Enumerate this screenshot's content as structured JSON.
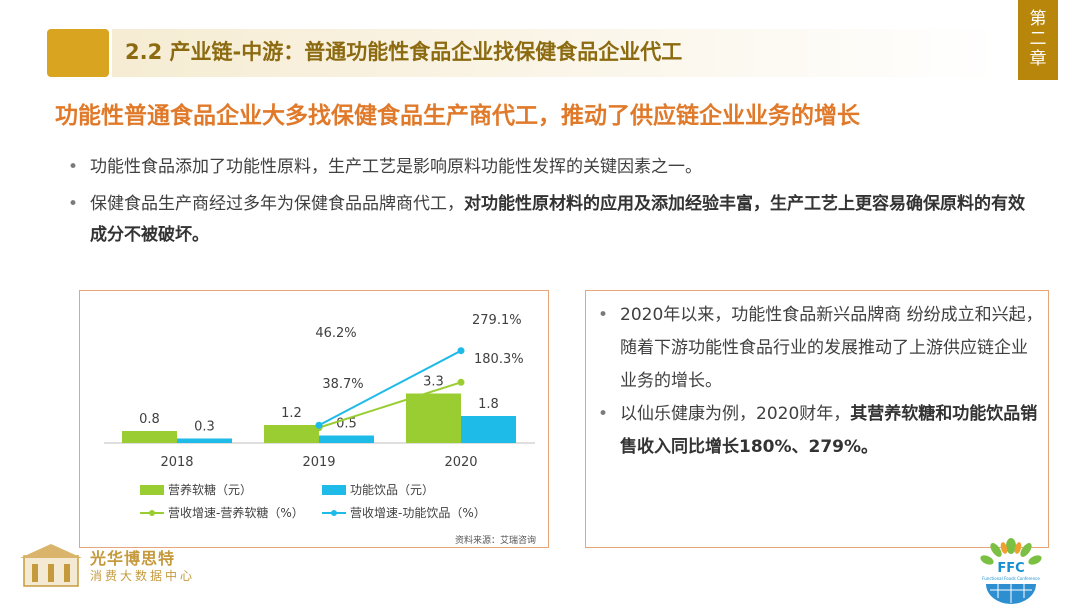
{
  "header": {
    "title": "2.2 产业链-中游：普通功能性食品企业找保健食品企业代工",
    "chapter": [
      "第",
      "二",
      "章"
    ]
  },
  "headline": "功能性普通食品企业大多找保健食品生产商代工，推动了供应链企业业务的增长",
  "bullets": {
    "b1": "功能性食品添加了功能性原料，生产工艺是影响原料功能性发挥的关键因素之一。",
    "b2_normal": "保健食品生产商经过多年为保健食品品牌商代工，",
    "b2_bold": "对功能性原材料的应用及添加经验丰富，生产工艺上更容易确保原料的有效成分不被破坏。"
  },
  "right_panel": {
    "p1": "2020年以来，功能性食品新兴品牌商 纷纷成立和兴起，随着下游功能性食品行业的发展推动了上游供应链企业业务的增长。",
    "p2_normal": "以仙乐健康为例，2020财年，",
    "p2_bold": "其营养软糖和功能饮品销售收入同比增长180%、279%。"
  },
  "source": "资料来源：艾瑞咨询",
  "logos": {
    "brand": "光华博思特",
    "sub": "消费大数据中心",
    "ffc": "FFC",
    "ffc_sub": "Functional Foods Conference"
  },
  "colors": {
    "gummy": "#9acd32",
    "drink": "#1ebbe8",
    "accent": "#e07a2a",
    "gold": "#b8860b"
  },
  "chart_data": {
    "type": "bar",
    "categories": [
      "2018",
      "2019",
      "2020"
    ],
    "series": [
      {
        "name": "营养软糖（元）",
        "values": [
          0.8,
          1.2,
          3.3
        ],
        "labels": [
          "0.8",
          "1.2",
          "3.3"
        ]
      },
      {
        "name": "功能饮品（元）",
        "values": [
          0.3,
          0.5,
          1.8
        ],
        "labels": [
          "0.3",
          "0.5",
          "1.8"
        ]
      }
    ],
    "lines": [
      {
        "name": "营收增速-营养软糖（%）",
        "x": [
          "2019",
          "2020"
        ],
        "values": [
          38.7,
          180.3
        ],
        "labels": [
          "38.7%",
          "180.3%"
        ]
      },
      {
        "name": "营收增速-功能饮品（%）",
        "x": [
          "2019",
          "2020"
        ],
        "values": [
          46.2,
          279.1
        ],
        "labels": [
          "46.2%",
          "279.1%"
        ]
      }
    ],
    "legend_position": "bottom",
    "grid": false
  }
}
